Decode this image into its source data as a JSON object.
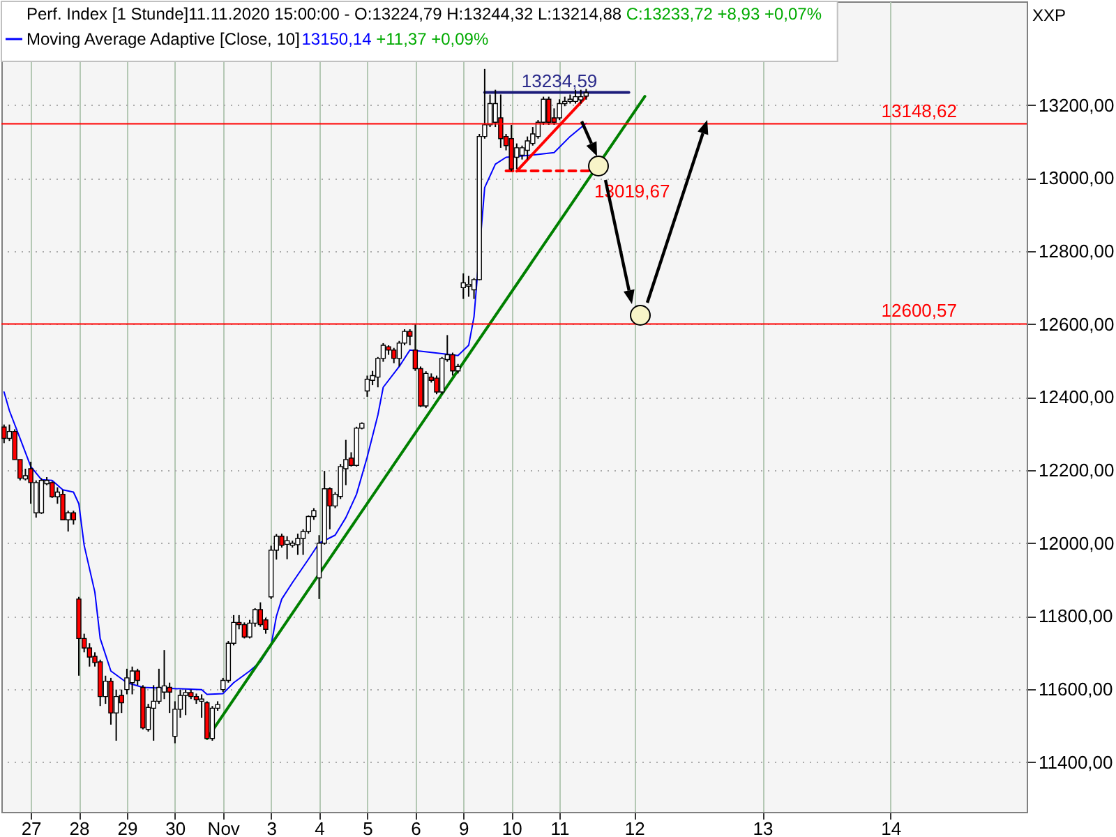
{
  "chart_data": {
    "type": "candlestick",
    "legend": "top left",
    "grid": true,
    "categories": [
      null,
      null,
      null,
      null,
      null,
      "27",
      null,
      null,
      null,
      null,
      null,
      null,
      null,
      null,
      "28",
      null,
      null,
      null,
      null,
      null,
      null,
      null,
      null,
      "29",
      null,
      null,
      null,
      null,
      null,
      null,
      null,
      null,
      "30",
      null,
      null,
      null,
      null,
      null,
      null,
      null,
      null,
      "Nov",
      null,
      null,
      null,
      null,
      null,
      null,
      null,
      null,
      "3",
      null,
      null,
      null,
      null,
      null,
      null,
      null,
      null,
      "4",
      null,
      null,
      null,
      null,
      null,
      null,
      null,
      null,
      "5",
      null,
      null,
      null,
      null,
      null,
      null,
      null,
      null,
      "6",
      null,
      null,
      null,
      null,
      null,
      null,
      null,
      null,
      "9",
      null,
      null,
      null,
      null,
      null,
      null,
      null,
      null,
      "10",
      null,
      null,
      null,
      null,
      null,
      null,
      null,
      null,
      "11",
      null,
      null,
      null,
      null,
      null,
      null,
      null,
      null,
      null,
      null,
      null,
      null,
      null,
      "12",
      null,
      null,
      null,
      null,
      null,
      null,
      null,
      null,
      null,
      null,
      null,
      null,
      null,
      null,
      null,
      null,
      null,
      null,
      null,
      null,
      null,
      null,
      null,
      "13",
      null,
      null,
      null,
      null,
      null,
      null,
      null,
      null,
      null,
      null,
      null,
      null,
      null,
      null,
      null,
      null,
      null,
      null,
      null,
      null,
      null,
      null,
      null,
      "14",
      null,
      null,
      null,
      null,
      null,
      null,
      null,
      null,
      null,
      null,
      null,
      null,
      null,
      null,
      null,
      null,
      null,
      null,
      null,
      null,
      null,
      null,
      null,
      null,
      null
    ],
    "ylim": [
      11264,
      13484
    ],
    "yticks": [
      {
        "value": 11400,
        "label": "11400,00"
      },
      {
        "value": 11600,
        "label": "11600,00"
      },
      {
        "value": 11800,
        "label": "11800,00"
      },
      {
        "value": 12000,
        "label": "12000,00"
      },
      {
        "value": 12200,
        "label": "12200,00"
      },
      {
        "value": 12400,
        "label": "12400,00"
      },
      {
        "value": 12600,
        "label": "12600,00"
      },
      {
        "value": 12800,
        "label": "12800,00"
      },
      {
        "value": 13000,
        "label": "13000,00"
      },
      {
        "value": 13200,
        "label": "13200,00"
      }
    ],
    "annotations": [
      " 11.11.2020 15:00:00 - O:13224,79 H:13244,32 L:13214,88",
      " C:13233,72 +8,93 +0,07%",
      " 13150,14",
      " +11,37 +0,09%",
      "XXP",
      {
        "text": "13234,59",
        "y": 13234.59
      },
      "13019,67"
    ],
    "ref_lines": [
      {
        "axis": "y",
        "value": 13148.62,
        "label": "13148,62",
        "color": "#ff0000"
      },
      {
        "axis": "y",
        "value": 12600.57,
        "label": "12600,57",
        "color": "#ff0000"
      }
    ],
    "series": [
      {
        "name": "Perf. Index [1 Stunde]",
        "ohlc": [
          [
            12318,
            12325,
            12274,
            12287
          ],
          [
            12287,
            12325,
            12280,
            12306
          ],
          [
            12306,
            12312,
            12229,
            12229
          ],
          [
            12229,
            12229,
            12172,
            12178
          ],
          [
            12176,
            12204,
            12172,
            12185
          ],
          [
            12204,
            12223,
            12108,
            12166
          ],
          [
            12083,
            12172,
            12070,
            12166
          ],
          [
            12083,
            12178,
            12080,
            12172
          ],
          [
            12163,
            12181,
            12159,
            12172
          ],
          [
            12166,
            12169,
            12124,
            12127
          ],
          [
            12127,
            12153,
            12108,
            12140
          ],
          [
            12134,
            12146,
            12064,
            12064
          ],
          [
            12064,
            12089,
            12032,
            12083
          ],
          [
            12083,
            12089,
            12051,
            12064
          ],
          [
            11847,
            11853,
            11637,
            11739
          ],
          [
            11739,
            11752,
            11701,
            11713
          ],
          [
            11713,
            11726,
            11662,
            11688
          ],
          [
            11690,
            11701,
            11662,
            11673
          ],
          [
            11675,
            11681,
            11554,
            11580
          ],
          [
            11580,
            11637,
            11560,
            11622
          ],
          [
            11622,
            11631,
            11503,
            11535
          ],
          [
            11535,
            11599,
            11459,
            11580
          ],
          [
            11583,
            11599,
            11535,
            11563
          ],
          [
            11599,
            11656,
            11586,
            11631
          ],
          [
            11618,
            11662,
            11586,
            11650
          ],
          [
            11650,
            11656,
            11611,
            11624
          ],
          [
            11605,
            11611,
            11490,
            11494
          ],
          [
            11490,
            11560,
            11484,
            11550
          ],
          [
            11548,
            11611,
            11459,
            11567
          ],
          [
            11567,
            11656,
            11560,
            11605
          ],
          [
            11592,
            11707,
            11573,
            11609
          ],
          [
            11605,
            11618,
            11535,
            11592
          ],
          [
            11471,
            11567,
            11452,
            11545
          ],
          [
            11545,
            11599,
            11522,
            11583
          ],
          [
            11583,
            11599,
            11529,
            11591
          ],
          [
            11591,
            11599,
            11573,
            11580
          ],
          [
            11580,
            11588,
            11560,
            11571
          ],
          [
            11567,
            11586,
            11522,
            11573
          ],
          [
            11563,
            11567,
            11465,
            11465
          ],
          [
            11465,
            11554,
            11459,
            11548
          ],
          [
            11548,
            11567,
            11541,
            11558
          ],
          [
            11599,
            11631,
            11592,
            11624
          ],
          [
            11624,
            11732,
            11618,
            11726
          ],
          [
            11726,
            11803,
            11720,
            11783
          ],
          [
            11783,
            11803,
            11764,
            11777
          ],
          [
            11777,
            11783,
            11739,
            11743
          ],
          [
            11743,
            11790,
            11739,
            11781
          ],
          [
            11781,
            11822,
            11771,
            11818
          ],
          [
            11818,
            11838,
            11771,
            11777
          ],
          [
            11790,
            11796,
            11752,
            11764
          ],
          [
            11853,
            11993,
            11847,
            11981
          ],
          [
            11981,
            12025,
            11955,
            12019
          ],
          [
            12019,
            12026,
            11988,
            11994
          ],
          [
            11997,
            12019,
            11956,
            12007
          ],
          [
            11994,
            12007,
            11988,
            12000
          ],
          [
            11996,
            12026,
            11968,
            12013
          ],
          [
            12013,
            12038,
            11968,
            12032
          ],
          [
            12032,
            12076,
            12026,
            12073
          ],
          [
            12073,
            12096,
            12064,
            12089
          ],
          [
            11905,
            12022,
            11847,
            12000
          ],
          [
            12000,
            12198,
            11996,
            12149
          ],
          [
            12149,
            12153,
            12038,
            12102
          ],
          [
            12102,
            12140,
            12096,
            12134
          ],
          [
            12128,
            12217,
            12121,
            12210
          ],
          [
            12204,
            12283,
            12159,
            12229
          ],
          [
            12233,
            12249,
            12210,
            12213
          ],
          [
            12213,
            12319,
            12210,
            12315
          ],
          [
            12315,
            12331,
            12312,
            12328
          ],
          [
            12417,
            12459,
            12401,
            12449
          ],
          [
            12446,
            12472,
            12433,
            12459
          ],
          [
            12455,
            12510,
            12427,
            12506
          ],
          [
            12506,
            12548,
            12497,
            12542
          ],
          [
            12538,
            12542,
            12516,
            12529
          ],
          [
            12529,
            12535,
            12493,
            12506
          ],
          [
            12506,
            12554,
            12484,
            12548
          ],
          [
            12548,
            12586,
            12542,
            12580
          ],
          [
            12580,
            12586,
            12542,
            12567
          ],
          [
            12529,
            12599,
            12472,
            12478
          ],
          [
            12478,
            12484,
            12373,
            12376
          ],
          [
            12376,
            12471,
            12370,
            12465
          ],
          [
            12455,
            12465,
            12440,
            12446
          ],
          [
            12452,
            12459,
            12408,
            12414
          ],
          [
            12414,
            12510,
            12408,
            12506
          ],
          [
            12503,
            12570,
            12497,
            12516
          ],
          [
            12516,
            12522,
            12459,
            12472
          ],
          [
            12472,
            12491,
            12465,
            12484
          ],
          [
            12700,
            12739,
            12669,
            12713
          ],
          [
            12704,
            12732,
            12675,
            12709
          ],
          [
            12694,
            12726,
            12669,
            12722
          ],
          [
            12722,
            13121,
            12720,
            13114
          ],
          [
            13114,
            13299,
            13108,
            13146
          ],
          [
            13146,
            13229,
            13140,
            13204
          ],
          [
            13153,
            13242,
            13140,
            13204
          ],
          [
            13165,
            13229,
            13083,
            13108
          ],
          [
            13114,
            13121,
            13076,
            13089
          ],
          [
            13108,
            13146,
            13019,
            13025
          ],
          [
            13057,
            13095,
            13025,
            13083
          ],
          [
            13063,
            13089,
            13051,
            13083
          ],
          [
            13076,
            13114,
            13051,
            13102
          ],
          [
            13095,
            13140,
            13089,
            13121
          ],
          [
            13114,
            13159,
            13108,
            13153
          ],
          [
            13153,
            13223,
            13146,
            13216
          ],
          [
            13216,
            13223,
            13146,
            13153
          ],
          [
            13165,
            13191,
            13146,
            13153
          ],
          [
            13165,
            13216,
            13159,
            13204
          ],
          [
            13204,
            13223,
            13197,
            13210
          ],
          [
            13210,
            13229,
            13204,
            13216
          ],
          [
            13210,
            13242,
            13204,
            13223
          ],
          [
            13214,
            13242,
            13204,
            13223
          ],
          [
            13224.79,
            13244.32,
            13214.88,
            13233.72
          ],
          null,
          null,
          null,
          null,
          null,
          null,
          null,
          null,
          null,
          null,
          null,
          null,
          null,
          null,
          null,
          null,
          null,
          null,
          null,
          null,
          null,
          null,
          null,
          null,
          null,
          null,
          null,
          null,
          null,
          null,
          null,
          null,
          null,
          null,
          null,
          null,
          null,
          null,
          null,
          null,
          null,
          null,
          null,
          null,
          null,
          null,
          null,
          null,
          null,
          null,
          null,
          null,
          null,
          null,
          null,
          null,
          null,
          null,
          null,
          null,
          null,
          null,
          null,
          null,
          null,
          null,
          null,
          null,
          null,
          null,
          null,
          null,
          null,
          null,
          null,
          null,
          null,
          null,
          null,
          null,
          null,
          null
        ]
      },
      {
        "name": "Moving Average Adaptive [Close, 10]",
        "type": "line",
        "color": "#0000ff",
        "values": [
          12414,
          12363,
          null,
          12287,
          null,
          12210,
          null,
          12174,
          null,
          12172,
          null,
          12146,
          null,
          12140,
          12108,
          11994,
          null,
          11866,
          11739,
          null,
          11650,
          null,
          null,
          11618,
          null,
          null,
          11605,
          null,
          null,
          null,
          null,
          null,
          null,
          null,
          null,
          null,
          null,
          11599,
          11586,
          null,
          null,
          11588,
          null,
          11618,
          null,
          null,
          11650,
          null,
          11675,
          null,
          11720,
          11800,
          11847,
          null,
          11892,
          null,
          null,
          11956,
          null,
          12000,
          null,
          null,
          12022,
          null,
          12070,
          null,
          12134,
          null,
          12236,
          null,
          12351,
          12427,
          null,
          null,
          12484,
          null,
          12529,
          null,
          12526,
          null,
          null,
          null,
          12519,
          null,
          null,
          12514,
          null,
          12542,
          12620,
          null,
          12974,
          null,
          13038,
          null,
          13057,
          null,
          null,
          null,
          null,
          13063,
          null,
          null,
          null,
          13070,
          null,
          null,
          13114,
          null,
          null,
          13150.14,
          null,
          null,
          null,
          null,
          null,
          null,
          null,
          null,
          null,
          null,
          null,
          null,
          null,
          null,
          null,
          null,
          null,
          null,
          null,
          null,
          null,
          null,
          null,
          null,
          null,
          null,
          null,
          null,
          null,
          null,
          null,
          null,
          null,
          null,
          null,
          null,
          null,
          null,
          null,
          null,
          null,
          null,
          null,
          null,
          null,
          null,
          null,
          null,
          null,
          null,
          null,
          null,
          null,
          null,
          null,
          null,
          null,
          null,
          null,
          null,
          null,
          null,
          null,
          null,
          null,
          null,
          null,
          null,
          null,
          null,
          null,
          null,
          null,
          null,
          null,
          null,
          null,
          null,
          null,
          null,
          null,
          null
        ]
      },
      {
        "type": "line",
        "color": "#008000",
        "values": [
          null,
          null,
          null,
          null,
          null,
          null,
          null,
          null,
          null,
          null,
          null,
          null,
          null,
          null,
          null,
          null,
          null,
          null,
          null,
          null,
          null,
          null,
          null,
          null,
          null,
          null,
          null,
          null,
          null,
          null,
          null,
          null,
          null,
          null,
          null,
          null,
          null,
          null,
          11465,
          null,
          null,
          null,
          null,
          null,
          null,
          null,
          null,
          null,
          null,
          null,
          null,
          null,
          null,
          null,
          null,
          null,
          null,
          null,
          null,
          null,
          null,
          null,
          null,
          null,
          null,
          null,
          null,
          null,
          null,
          null,
          null,
          null,
          null,
          null,
          null,
          null,
          null,
          null,
          null,
          null,
          null,
          null,
          null,
          null,
          null,
          null,
          null,
          null,
          null,
          null,
          null,
          null,
          null,
          null,
          null,
          null,
          null,
          null,
          null,
          null,
          null,
          null,
          null,
          null,
          null,
          null,
          null,
          null,
          null,
          null,
          null,
          null,
          null,
          null,
          null,
          null,
          null,
          null,
          null,
          null,
          13224,
          null,
          null,
          null,
          null,
          null,
          null,
          null,
          null,
          null,
          null,
          null,
          null,
          null,
          null,
          null,
          null,
          null,
          null,
          null,
          null,
          null,
          null,
          null,
          null,
          null,
          null,
          null,
          null,
          null,
          null,
          null,
          null,
          null,
          null,
          null,
          null,
          null,
          null,
          null,
          null,
          null,
          null,
          null,
          null,
          null,
          null,
          null,
          null,
          null,
          null,
          null,
          null,
          null,
          null,
          null,
          null,
          null,
          null,
          null,
          null,
          null,
          null,
          null,
          null,
          null,
          null,
          null,
          null,
          null,
          null,
          null
        ]
      },
      {
        "type": "line",
        "color": "#ff0000",
        "values": [
          null,
          null,
          null,
          null,
          null,
          null,
          null,
          null,
          null,
          null,
          null,
          null,
          null,
          null,
          null,
          null,
          null,
          null,
          null,
          null,
          null,
          null,
          null,
          null,
          null,
          null,
          null,
          null,
          null,
          null,
          null,
          null,
          null,
          null,
          null,
          null,
          null,
          null,
          null,
          null,
          null,
          null,
          null,
          null,
          null,
          null,
          null,
          null,
          null,
          null,
          null,
          null,
          null,
          null,
          null,
          null,
          null,
          null,
          null,
          null,
          null,
          null,
          null,
          null,
          null,
          null,
          null,
          null,
          null,
          null,
          null,
          null,
          null,
          null,
          null,
          null,
          null,
          null,
          null,
          null,
          null,
          null,
          null,
          null,
          null,
          null,
          null,
          null,
          null,
          null,
          null,
          null,
          null,
          null,
          null,
          null,
          13019,
          null,
          null,
          null,
          null,
          null,
          null,
          null,
          null,
          null,
          null,
          null,
          null,
          13223,
          null,
          null,
          null,
          null,
          null,
          null,
          null,
          null,
          null,
          null,
          null,
          null,
          null,
          null,
          null,
          null,
          null,
          null,
          null,
          null,
          null,
          null,
          null,
          null,
          null,
          null,
          null,
          null,
          null,
          null,
          null,
          null,
          null,
          null,
          null,
          null,
          null,
          null,
          null,
          null,
          null,
          null,
          null,
          null,
          null,
          null,
          null,
          null,
          null,
          null,
          null,
          null,
          null,
          null,
          null,
          null,
          null,
          null,
          null,
          null,
          null,
          null,
          null,
          null,
          null,
          null,
          null,
          null,
          null,
          null,
          null,
          null,
          null,
          null,
          null,
          null,
          null,
          null,
          null,
          null,
          null,
          null
        ]
      },
      {
        "type": "line",
        "color": "#1c1c7a",
        "values": [
          null,
          null,
          null,
          null,
          null,
          null,
          null,
          null,
          null,
          null,
          null,
          null,
          null,
          null,
          null,
          null,
          null,
          null,
          null,
          null,
          null,
          null,
          null,
          null,
          null,
          null,
          null,
          null,
          null,
          null,
          null,
          null,
          null,
          null,
          null,
          null,
          null,
          null,
          null,
          null,
          null,
          null,
          null,
          null,
          null,
          null,
          null,
          null,
          null,
          null,
          null,
          null,
          null,
          null,
          null,
          null,
          null,
          null,
          null,
          null,
          null,
          null,
          null,
          null,
          null,
          null,
          null,
          null,
          null,
          null,
          null,
          null,
          null,
          null,
          null,
          null,
          null,
          null,
          null,
          null,
          null,
          null,
          null,
          null,
          null,
          null,
          null,
          null,
          null,
          null,
          13234.59,
          null,
          null,
          null,
          null,
          null,
          null,
          null,
          null,
          null,
          null,
          null,
          null,
          null,
          null,
          null,
          null,
          null,
          null,
          null,
          null,
          null,
          null,
          null,
          null,
          null,
          null,
          13234.59,
          null,
          null,
          null,
          null,
          null,
          null,
          null,
          null,
          null,
          null,
          null,
          null,
          null,
          null,
          null,
          null,
          null,
          null,
          null,
          null,
          null,
          null,
          null,
          null,
          null,
          null,
          null,
          null,
          null,
          null,
          null,
          null,
          null,
          null,
          null,
          null,
          null,
          null,
          null,
          null,
          null,
          null,
          null,
          null,
          null,
          null,
          null,
          null,
          null,
          null,
          null,
          null,
          null,
          null,
          null,
          null,
          null,
          null,
          null,
          null,
          null,
          null,
          null,
          null,
          null,
          null,
          null,
          null,
          null,
          null,
          null,
          null,
          null,
          null
        ]
      },
      {
        "type": "line",
        "color": "#ff0000",
        "line_style": "dashed",
        "values": [
          null,
          null,
          null,
          null,
          null,
          null,
          null,
          null,
          null,
          null,
          null,
          null,
          null,
          null,
          null,
          null,
          null,
          null,
          null,
          null,
          null,
          null,
          null,
          null,
          null,
          null,
          null,
          null,
          null,
          null,
          null,
          null,
          null,
          null,
          null,
          null,
          null,
          null,
          null,
          null,
          null,
          null,
          null,
          null,
          null,
          null,
          null,
          null,
          null,
          null,
          null,
          null,
          null,
          null,
          null,
          null,
          null,
          null,
          null,
          null,
          null,
          null,
          null,
          null,
          null,
          null,
          null,
          null,
          null,
          null,
          null,
          null,
          null,
          null,
          null,
          null,
          null,
          null,
          null,
          null,
          null,
          null,
          null,
          null,
          null,
          null,
          null,
          null,
          null,
          null,
          null,
          null,
          null,
          null,
          13019.67,
          null,
          null,
          null,
          null,
          null,
          null,
          null,
          null,
          null,
          null,
          null,
          null,
          null,
          null,
          null,
          13019.67,
          null,
          null,
          null,
          null,
          null,
          null,
          null,
          null,
          null,
          null,
          null,
          null,
          null,
          null,
          null,
          null,
          null,
          null,
          null,
          null,
          null,
          null,
          null,
          null,
          null,
          null,
          null,
          null,
          null,
          null,
          null,
          null,
          null,
          null,
          null,
          null,
          null,
          null,
          null,
          null,
          null,
          null,
          null,
          null,
          null,
          null,
          null,
          null,
          null,
          null,
          null,
          null,
          null,
          null,
          null,
          null,
          null,
          null,
          null,
          null,
          null,
          null,
          null,
          null,
          null,
          null,
          null,
          null,
          null,
          null,
          null,
          null,
          null,
          null,
          null,
          null,
          null,
          null,
          null,
          null,
          null
        ]
      }
    ]
  }
}
